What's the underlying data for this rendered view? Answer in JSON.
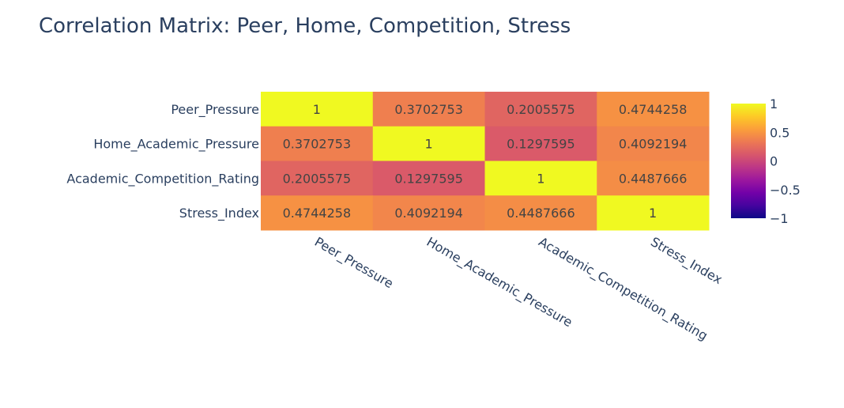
{
  "chart_data": {
    "type": "heatmap",
    "title": "Correlation Matrix: Peer, Home, Competition, Stress",
    "x_categories": [
      "Peer_Pressure",
      "Home_Academic_Pressure",
      "Academic_Competition_Rating",
      "Stress_Index"
    ],
    "y_categories": [
      "Peer_Pressure",
      "Home_Academic_Pressure",
      "Academic_Competition_Rating",
      "Stress_Index"
    ],
    "z": [
      [
        1,
        0.3702753,
        0.2005575,
        0.4744258
      ],
      [
        0.3702753,
        1,
        0.1297595,
        0.4092194
      ],
      [
        0.2005575,
        0.1297595,
        1,
        0.4487666
      ],
      [
        0.4744258,
        0.4092194,
        0.4487666,
        1
      ]
    ],
    "z_labels": [
      [
        "1",
        "0.3702753",
        "0.2005575",
        "0.4744258"
      ],
      [
        "0.3702753",
        "1",
        "0.1297595",
        "0.4092194"
      ],
      [
        "0.2005575",
        "0.1297595",
        "1",
        "0.4487666"
      ],
      [
        "0.4744258",
        "0.4092194",
        "0.4487666",
        "1"
      ]
    ],
    "zmin": -1,
    "zmax": 1,
    "colorscale": "plasma",
    "colorbar": {
      "tickvals": [
        1,
        0.5,
        0,
        -0.5,
        -1
      ],
      "ticktext": [
        "1",
        "0.5",
        "0",
        "−0.5",
        "−1"
      ]
    },
    "xlabel": "",
    "ylabel": ""
  }
}
